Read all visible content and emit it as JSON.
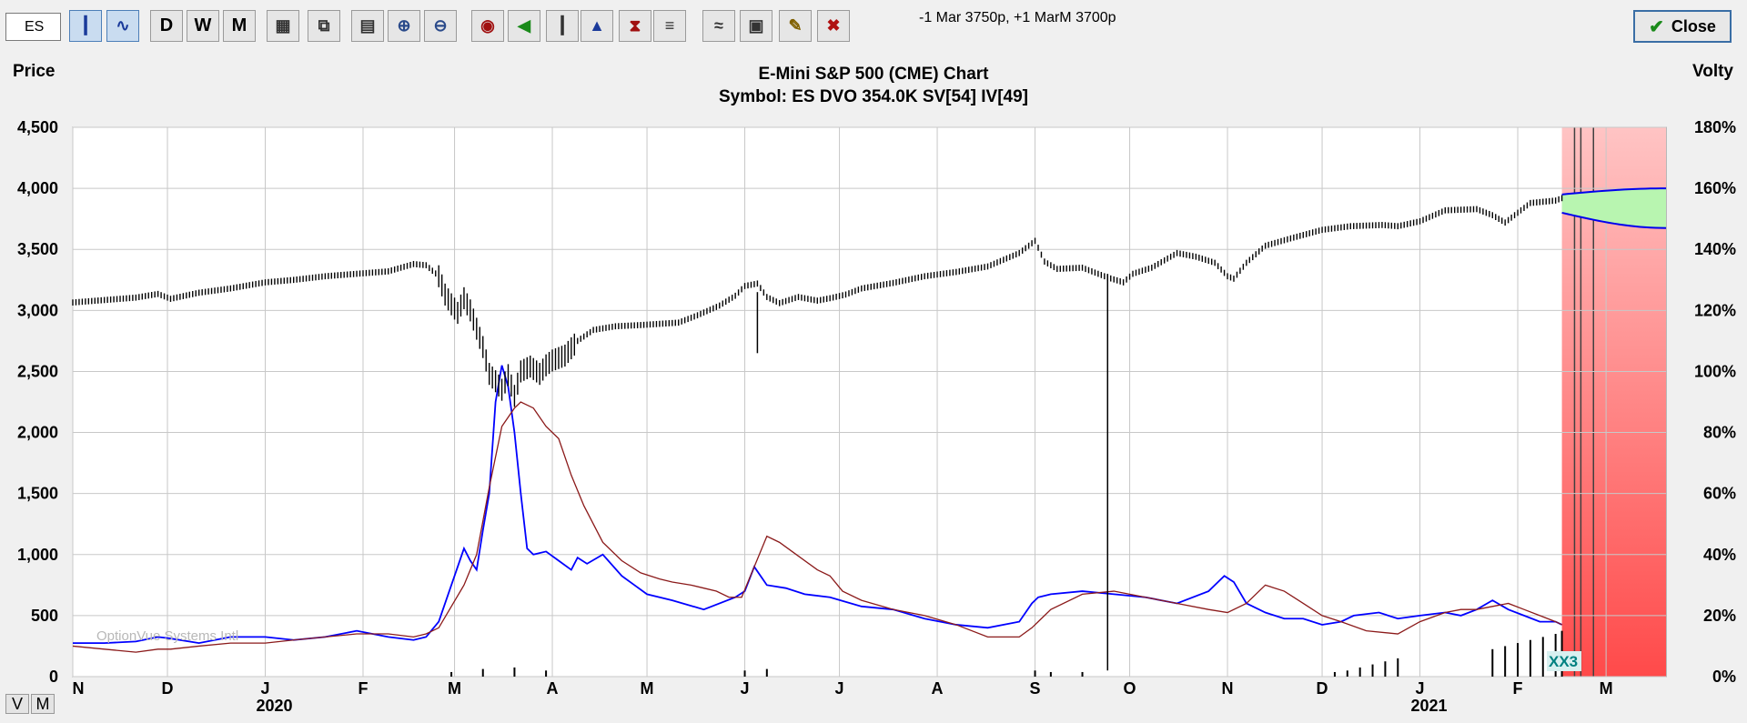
{
  "toolbar": {
    "symbol_value": "ES",
    "status_text": "-1 Mar 3750p, +1 MarM 3700p",
    "close_label": "Close",
    "buttons": [
      {
        "name": "bar-chart-icon",
        "label": ""
      },
      {
        "name": "line-chart-icon",
        "label": ""
      },
      {
        "name": "daily-button",
        "label": "D"
      },
      {
        "name": "weekly-button",
        "label": "W"
      },
      {
        "name": "monthly-button",
        "label": "M"
      },
      {
        "name": "chart-settings-icon",
        "label": ""
      },
      {
        "name": "copy-icon",
        "label": ""
      },
      {
        "name": "calculator-icon",
        "label": ""
      },
      {
        "name": "zoom-in-icon",
        "label": ""
      },
      {
        "name": "zoom-out-icon",
        "label": ""
      },
      {
        "name": "target-icon",
        "label": ""
      },
      {
        "name": "left-arrow-icon",
        "label": ""
      },
      {
        "name": "candlestick-icon",
        "label": ""
      },
      {
        "name": "volume-icon",
        "label": ""
      },
      {
        "name": "hourglass-icon",
        "label": ""
      },
      {
        "name": "chart-indicator-icon",
        "label": ""
      },
      {
        "name": "study-icon",
        "label": ""
      },
      {
        "name": "print-icon",
        "label": ""
      },
      {
        "name": "pencil-icon",
        "label": ""
      },
      {
        "name": "delete-icon",
        "label": ""
      }
    ],
    "view_buttons": [
      "V",
      "M"
    ]
  },
  "chart_data": {
    "type": "line",
    "title": "E-Mini S&P 500 (CME) Chart",
    "subtitle": "Symbol: ES  DVO 354.0K  SV[54]  IV[49]",
    "ylabel_left": "Price",
    "ylabel_right": "Volty",
    "watermark": "OptionVue Systems Intl",
    "marker_label": "XX3",
    "y_left_ticks": [
      "4,500",
      "4,000",
      "3,500",
      "3,000",
      "2,500",
      "2,000",
      "1,500",
      "1,000",
      "500",
      "0"
    ],
    "y_right_ticks": [
      "180%",
      "160%",
      "140%",
      "120%",
      "100%",
      "80%",
      "60%",
      "40%",
      "20%",
      "0%"
    ],
    "ylim_left": [
      0,
      4500
    ],
    "ylim_right": [
      0,
      180
    ],
    "x_month_labels": [
      "N",
      "D",
      "J",
      "F",
      "M",
      "A",
      "M",
      "J",
      "J",
      "A",
      "S",
      "O",
      "N",
      "D",
      "J",
      "F",
      "M"
    ],
    "x_year_labels": [
      {
        "label": "2020",
        "month_index": 2
      },
      {
        "label": "2021",
        "month_index": 14
      }
    ],
    "x_month_start_days": [
      0,
      30,
      61,
      92,
      121,
      152,
      182,
      213,
      243,
      274,
      305,
      335,
      366,
      396,
      427,
      458,
      486
    ],
    "x_range_days": [
      0,
      505
    ],
    "series": [
      {
        "name": "Price",
        "axis": "left",
        "color": "#000000",
        "style": "ohlc",
        "points": [
          [
            0,
            3065
          ],
          [
            10,
            3085
          ],
          [
            20,
            3105
          ],
          [
            27,
            3135
          ],
          [
            31,
            3095
          ],
          [
            40,
            3145
          ],
          [
            50,
            3180
          ],
          [
            61,
            3230
          ],
          [
            70,
            3250
          ],
          [
            80,
            3280
          ],
          [
            90,
            3300
          ],
          [
            100,
            3320
          ],
          [
            108,
            3380
          ],
          [
            112,
            3370
          ],
          [
            116,
            3280
          ],
          [
            118,
            3130
          ],
          [
            120,
            3050
          ],
          [
            122,
            2980
          ],
          [
            124,
            3100
          ],
          [
            126,
            3000
          ],
          [
            128,
            2850
          ],
          [
            130,
            2700
          ],
          [
            132,
            2480
          ],
          [
            134,
            2420
          ],
          [
            136,
            2350
          ],
          [
            138,
            2470
          ],
          [
            140,
            2300
          ],
          [
            142,
            2500
          ],
          [
            145,
            2540
          ],
          [
            148,
            2480
          ],
          [
            150,
            2550
          ],
          [
            152,
            2590
          ],
          [
            156,
            2630
          ],
          [
            160,
            2750
          ],
          [
            165,
            2840
          ],
          [
            172,
            2870
          ],
          [
            180,
            2880
          ],
          [
            186,
            2890
          ],
          [
            192,
            2900
          ],
          [
            198,
            2960
          ],
          [
            205,
            3040
          ],
          [
            210,
            3120
          ],
          [
            213,
            3200
          ],
          [
            217,
            3220
          ],
          [
            220,
            3110
          ],
          [
            224,
            3060
          ],
          [
            230,
            3110
          ],
          [
            236,
            3080
          ],
          [
            240,
            3100
          ],
          [
            245,
            3130
          ],
          [
            250,
            3180
          ],
          [
            260,
            3225
          ],
          [
            270,
            3280
          ],
          [
            280,
            3315
          ],
          [
            290,
            3360
          ],
          [
            300,
            3470
          ],
          [
            305,
            3570
          ],
          [
            308,
            3400
          ],
          [
            312,
            3340
          ],
          [
            320,
            3350
          ],
          [
            328,
            3270
          ],
          [
            333,
            3230
          ],
          [
            336,
            3300
          ],
          [
            342,
            3350
          ],
          [
            350,
            3470
          ],
          [
            356,
            3440
          ],
          [
            362,
            3390
          ],
          [
            366,
            3280
          ],
          [
            368,
            3260
          ],
          [
            372,
            3390
          ],
          [
            378,
            3530
          ],
          [
            386,
            3590
          ],
          [
            396,
            3660
          ],
          [
            405,
            3690
          ],
          [
            415,
            3700
          ],
          [
            420,
            3690
          ],
          [
            427,
            3730
          ],
          [
            435,
            3820
          ],
          [
            445,
            3830
          ],
          [
            450,
            3780
          ],
          [
            454,
            3720
          ],
          [
            458,
            3800
          ],
          [
            462,
            3880
          ],
          [
            470,
            3900
          ],
          [
            472,
            3920
          ]
        ]
      },
      {
        "name": "Statistical Volatility",
        "axis": "right",
        "color": "#0000ff",
        "points": [
          [
            0,
            11
          ],
          [
            10,
            11
          ],
          [
            20,
            11.5
          ],
          [
            27,
            13
          ],
          [
            31,
            12.5
          ],
          [
            40,
            11
          ],
          [
            50,
            13
          ],
          [
            61,
            13
          ],
          [
            70,
            12
          ],
          [
            80,
            13
          ],
          [
            90,
            15
          ],
          [
            100,
            13
          ],
          [
            108,
            12
          ],
          [
            112,
            13
          ],
          [
            116,
            18
          ],
          [
            120,
            30
          ],
          [
            124,
            42
          ],
          [
            126,
            38
          ],
          [
            128,
            35
          ],
          [
            130,
            48
          ],
          [
            132,
            60
          ],
          [
            134,
            90
          ],
          [
            136,
            102
          ],
          [
            138,
            95
          ],
          [
            140,
            80
          ],
          [
            142,
            60
          ],
          [
            144,
            42
          ],
          [
            146,
            40
          ],
          [
            150,
            41
          ],
          [
            154,
            38
          ],
          [
            158,
            35
          ],
          [
            160,
            39
          ],
          [
            163,
            37
          ],
          [
            168,
            40
          ],
          [
            174,
            33
          ],
          [
            178,
            30
          ],
          [
            182,
            27
          ],
          [
            190,
            25
          ],
          [
            200,
            22
          ],
          [
            210,
            26
          ],
          [
            213,
            28
          ],
          [
            216,
            36
          ],
          [
            220,
            30
          ],
          [
            226,
            29
          ],
          [
            232,
            27
          ],
          [
            240,
            26
          ],
          [
            250,
            23
          ],
          [
            260,
            22
          ],
          [
            270,
            19
          ],
          [
            280,
            17
          ],
          [
            290,
            16
          ],
          [
            300,
            18
          ],
          [
            304,
            24
          ],
          [
            306,
            26
          ],
          [
            310,
            27
          ],
          [
            320,
            28
          ],
          [
            330,
            27
          ],
          [
            340,
            26
          ],
          [
            350,
            24
          ],
          [
            360,
            28
          ],
          [
            365,
            33
          ],
          [
            368,
            31
          ],
          [
            372,
            24
          ],
          [
            378,
            21
          ],
          [
            384,
            19
          ],
          [
            390,
            19
          ],
          [
            396,
            17
          ],
          [
            402,
            18
          ],
          [
            406,
            20
          ],
          [
            414,
            21
          ],
          [
            420,
            19
          ],
          [
            427,
            20
          ],
          [
            435,
            21
          ],
          [
            440,
            20
          ],
          [
            445,
            22
          ],
          [
            450,
            25
          ],
          [
            455,
            22
          ],
          [
            460,
            20
          ],
          [
            465,
            18
          ],
          [
            470,
            18
          ],
          [
            472,
            17
          ]
        ]
      },
      {
        "name": "Historical Volatility",
        "axis": "right",
        "color": "#8b1a1a",
        "points": [
          [
            0,
            10
          ],
          [
            10,
            9
          ],
          [
            20,
            8
          ],
          [
            27,
            9
          ],
          [
            31,
            9
          ],
          [
            40,
            10
          ],
          [
            50,
            11
          ],
          [
            61,
            11
          ],
          [
            70,
            12
          ],
          [
            80,
            13
          ],
          [
            90,
            14
          ],
          [
            100,
            14
          ],
          [
            108,
            13
          ],
          [
            112,
            14
          ],
          [
            116,
            16
          ],
          [
            120,
            23
          ],
          [
            124,
            30
          ],
          [
            128,
            40
          ],
          [
            132,
            62
          ],
          [
            136,
            82
          ],
          [
            140,
            88
          ],
          [
            142,
            90
          ],
          [
            146,
            88
          ],
          [
            150,
            82
          ],
          [
            154,
            78
          ],
          [
            158,
            66
          ],
          [
            162,
            56
          ],
          [
            168,
            44
          ],
          [
            174,
            38
          ],
          [
            180,
            34
          ],
          [
            186,
            32
          ],
          [
            190,
            31
          ],
          [
            196,
            30
          ],
          [
            200,
            29
          ],
          [
            204,
            28
          ],
          [
            208,
            26
          ],
          [
            212,
            26
          ],
          [
            216,
            36
          ],
          [
            220,
            46
          ],
          [
            224,
            44
          ],
          [
            228,
            41
          ],
          [
            236,
            35
          ],
          [
            240,
            33
          ],
          [
            244,
            28
          ],
          [
            250,
            25
          ],
          [
            260,
            22
          ],
          [
            270,
            20
          ],
          [
            280,
            17
          ],
          [
            290,
            13
          ],
          [
            300,
            13
          ],
          [
            304,
            16
          ],
          [
            306,
            18
          ],
          [
            310,
            22
          ],
          [
            320,
            27
          ],
          [
            330,
            28
          ],
          [
            340,
            26
          ],
          [
            350,
            24
          ],
          [
            360,
            22
          ],
          [
            366,
            21
          ],
          [
            372,
            24
          ],
          [
            378,
            30
          ],
          [
            384,
            28
          ],
          [
            390,
            24
          ],
          [
            396,
            20
          ],
          [
            402,
            18
          ],
          [
            410,
            15
          ],
          [
            420,
            14
          ],
          [
            427,
            18
          ],
          [
            435,
            21
          ],
          [
            440,
            22
          ],
          [
            445,
            22
          ],
          [
            450,
            23
          ],
          [
            455,
            24
          ],
          [
            460,
            22
          ],
          [
            465,
            20
          ],
          [
            470,
            18
          ],
          [
            472,
            17
          ]
        ]
      },
      {
        "name": "Volume",
        "axis": "right",
        "color": "#000000",
        "style": "bars",
        "points": [
          [
            120,
            1.5
          ],
          [
            130,
            2.5
          ],
          [
            140,
            3
          ],
          [
            150,
            2
          ],
          [
            213,
            2
          ],
          [
            220,
            2.5
          ],
          [
            305,
            2
          ],
          [
            310,
            1.5
          ],
          [
            320,
            1.5
          ],
          [
            400,
            1.5
          ],
          [
            404,
            2
          ],
          [
            408,
            3
          ],
          [
            412,
            4
          ],
          [
            416,
            5
          ],
          [
            420,
            6
          ],
          [
            450,
            9
          ],
          [
            454,
            10
          ],
          [
            458,
            11
          ],
          [
            462,
            12
          ],
          [
            466,
            13
          ],
          [
            470,
            14
          ],
          [
            472,
            15
          ]
        ]
      }
    ],
    "implied_volatility_band": {
      "upper_start": 158,
      "upper_end": 160,
      "lower_start": 152,
      "lower_end": 147
    }
  }
}
